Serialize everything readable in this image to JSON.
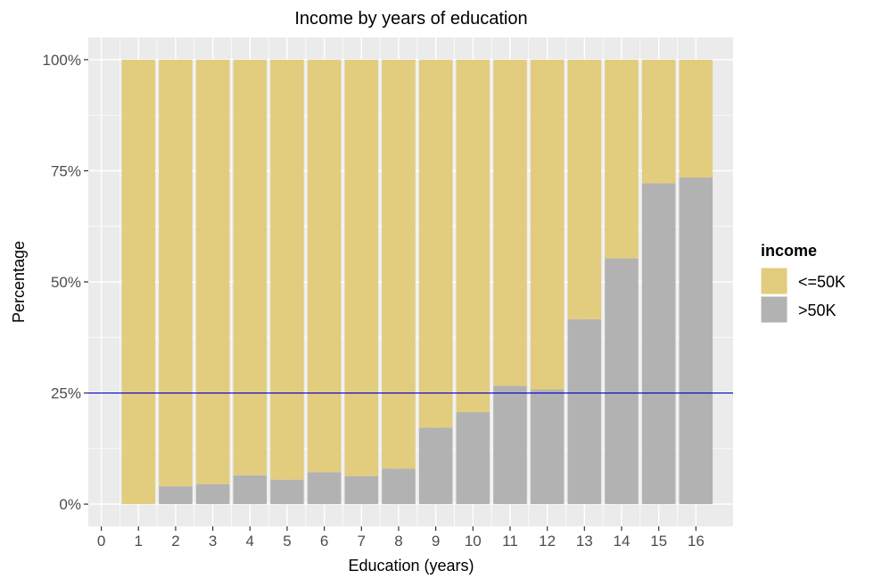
{
  "chart_data": {
    "type": "bar",
    "stacked": "percent",
    "title": "Income by years of education",
    "xlabel": "Education (years)",
    "ylabel": "Percentage",
    "categories": [
      1,
      2,
      3,
      4,
      5,
      6,
      7,
      8,
      9,
      10,
      11,
      12,
      13,
      14,
      15,
      16
    ],
    "x_ticks": [
      "0",
      "1",
      "2",
      "3",
      "4",
      "5",
      "6",
      "7",
      "8",
      "9",
      "10",
      "11",
      "12",
      "13",
      "14",
      "15",
      "16"
    ],
    "y_ticks": [
      "0%",
      "25%",
      "50%",
      "75%",
      "100%"
    ],
    "xlim": [
      -0.35,
      17
    ],
    "ylim": [
      -0.05,
      1.05
    ],
    "series": [
      {
        "name": ">50K",
        "color": "#b2b2b2",
        "values": [
          0.0,
          0.04,
          0.045,
          0.065,
          0.055,
          0.072,
          0.063,
          0.08,
          0.172,
          0.207,
          0.266,
          0.258,
          0.416,
          0.553,
          0.722,
          0.735
        ]
      },
      {
        "name": "<=50K",
        "color": "#e2cc7e",
        "values": [
          1.0,
          0.96,
          0.955,
          0.935,
          0.945,
          0.928,
          0.937,
          0.92,
          0.828,
          0.793,
          0.734,
          0.742,
          0.584,
          0.447,
          0.278,
          0.265
        ]
      }
    ],
    "reference_line": {
      "y": 0.25,
      "color": "#0000cd"
    },
    "legend": {
      "title": "income",
      "position": "right",
      "entries": [
        {
          "label": "<=50K",
          "color": "#e2cc7e"
        },
        {
          "label": ">50K",
          "color": "#b2b2b2"
        }
      ]
    },
    "grid": true,
    "panel_background": "#ebebeb"
  }
}
